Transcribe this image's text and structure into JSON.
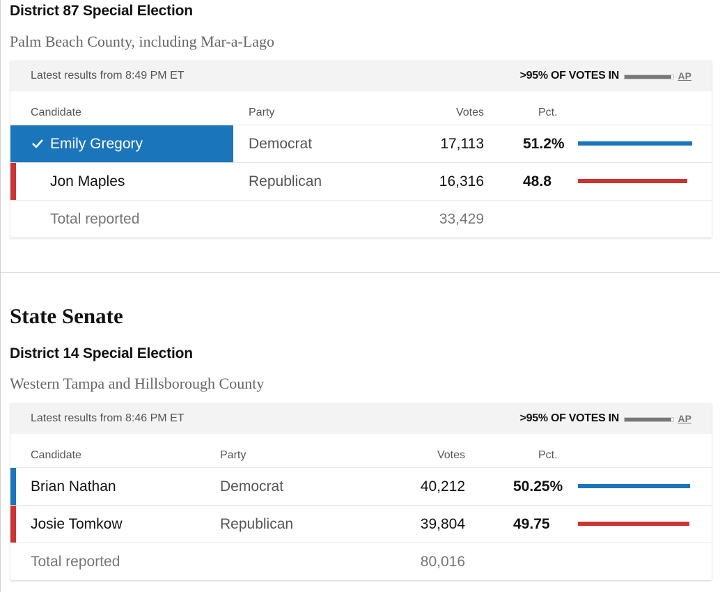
{
  "colors": {
    "democrat": "#1b75bb",
    "republican": "#cc3333",
    "progress": "#777777"
  },
  "race1": {
    "title": "District 87 Special Election",
    "subtitle": "Palm Beach County, including Mar-a-Lago",
    "latest": "Latest results from 8:49 PM ET",
    "votes_in": ">95% OF VOTES IN",
    "reporting_fraction": 0.95,
    "source": "AP",
    "columns": {
      "candidate": "Candidate",
      "party": "Party",
      "votes": "Votes",
      "pct": "Pct."
    },
    "candidates": [
      {
        "name": "Emily Gregory",
        "party": "Democrat",
        "votes": "17,113",
        "pct": "51.2%",
        "pct_value": 51.2,
        "winner": true,
        "party_color": "#1b75bb"
      },
      {
        "name": "Jon Maples",
        "party": "Republican",
        "votes": "16,316",
        "pct": "48.8",
        "pct_value": 48.8,
        "winner": false,
        "party_color": "#cc3333"
      }
    ],
    "total_label": "Total reported",
    "total_votes": "33,429"
  },
  "section_title": "State Senate",
  "race2": {
    "title": "District 14 Special Election",
    "subtitle": "Western Tampa and Hillsborough County",
    "latest": "Latest results from 8:46 PM ET",
    "votes_in": ">95% OF VOTES IN",
    "reporting_fraction": 0.95,
    "source": "AP",
    "columns": {
      "candidate": "Candidate",
      "party": "Party",
      "votes": "Votes",
      "pct": "Pct."
    },
    "candidates": [
      {
        "name": "Brian Nathan",
        "party": "Democrat",
        "votes": "40,212",
        "pct": "50.25%",
        "pct_value": 50.25,
        "winner": false,
        "party_color": "#1b75bb"
      },
      {
        "name": "Josie Tomkow",
        "party": "Republican",
        "votes": "39,804",
        "pct": "49.75",
        "pct_value": 49.75,
        "winner": false,
        "party_color": "#cc3333"
      }
    ],
    "total_label": "Total reported",
    "total_votes": "80,016"
  }
}
